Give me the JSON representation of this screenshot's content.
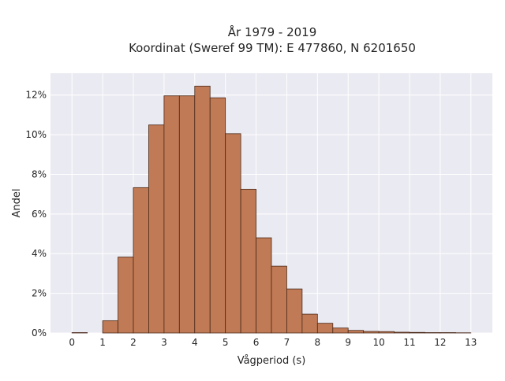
{
  "chart_data": {
    "type": "bar",
    "title_lines": [
      "År 1979 - 2019",
      "Koordinat (Sweref 99 TM): E 477860, N 6201650"
    ],
    "xlabel": "Vågperiod (s)",
    "ylabel": "Andel",
    "xlim": [
      -0.7,
      13.7
    ],
    "ylim": [
      0,
      0.131
    ],
    "bin_width": 0.5,
    "bin_starts": [
      0,
      0.5,
      1,
      1.5,
      2,
      2.5,
      3,
      3.5,
      4,
      4.5,
      5,
      5.5,
      6,
      6.5,
      7,
      7.5,
      8,
      8.5,
      9,
      9.5,
      10,
      10.5,
      11,
      11.5,
      12,
      12.5
    ],
    "values": [
      0.0002,
      0.0,
      0.0062,
      0.0383,
      0.0733,
      0.1049,
      0.1196,
      0.1196,
      0.1245,
      0.1186,
      0.1005,
      0.0725,
      0.048,
      0.0337,
      0.0222,
      0.0095,
      0.0049,
      0.0025,
      0.0013,
      0.0008,
      0.0007,
      0.0004,
      0.0003,
      0.0002,
      0.0002,
      0.0001
    ],
    "xticks": [
      "0",
      "1",
      "2",
      "3",
      "4",
      "5",
      "6",
      "7",
      "8",
      "9",
      "10",
      "11",
      "12",
      "13"
    ],
    "yticks": [
      "0%",
      "2%",
      "4%",
      "6%",
      "8%",
      "10%",
      "12%"
    ],
    "grid": true,
    "colors": {
      "bar_fill": "#c07a55",
      "bar_edge": "#4a2a1a",
      "plot_background": "#eaeaf2",
      "grid": "#ffffff"
    }
  }
}
